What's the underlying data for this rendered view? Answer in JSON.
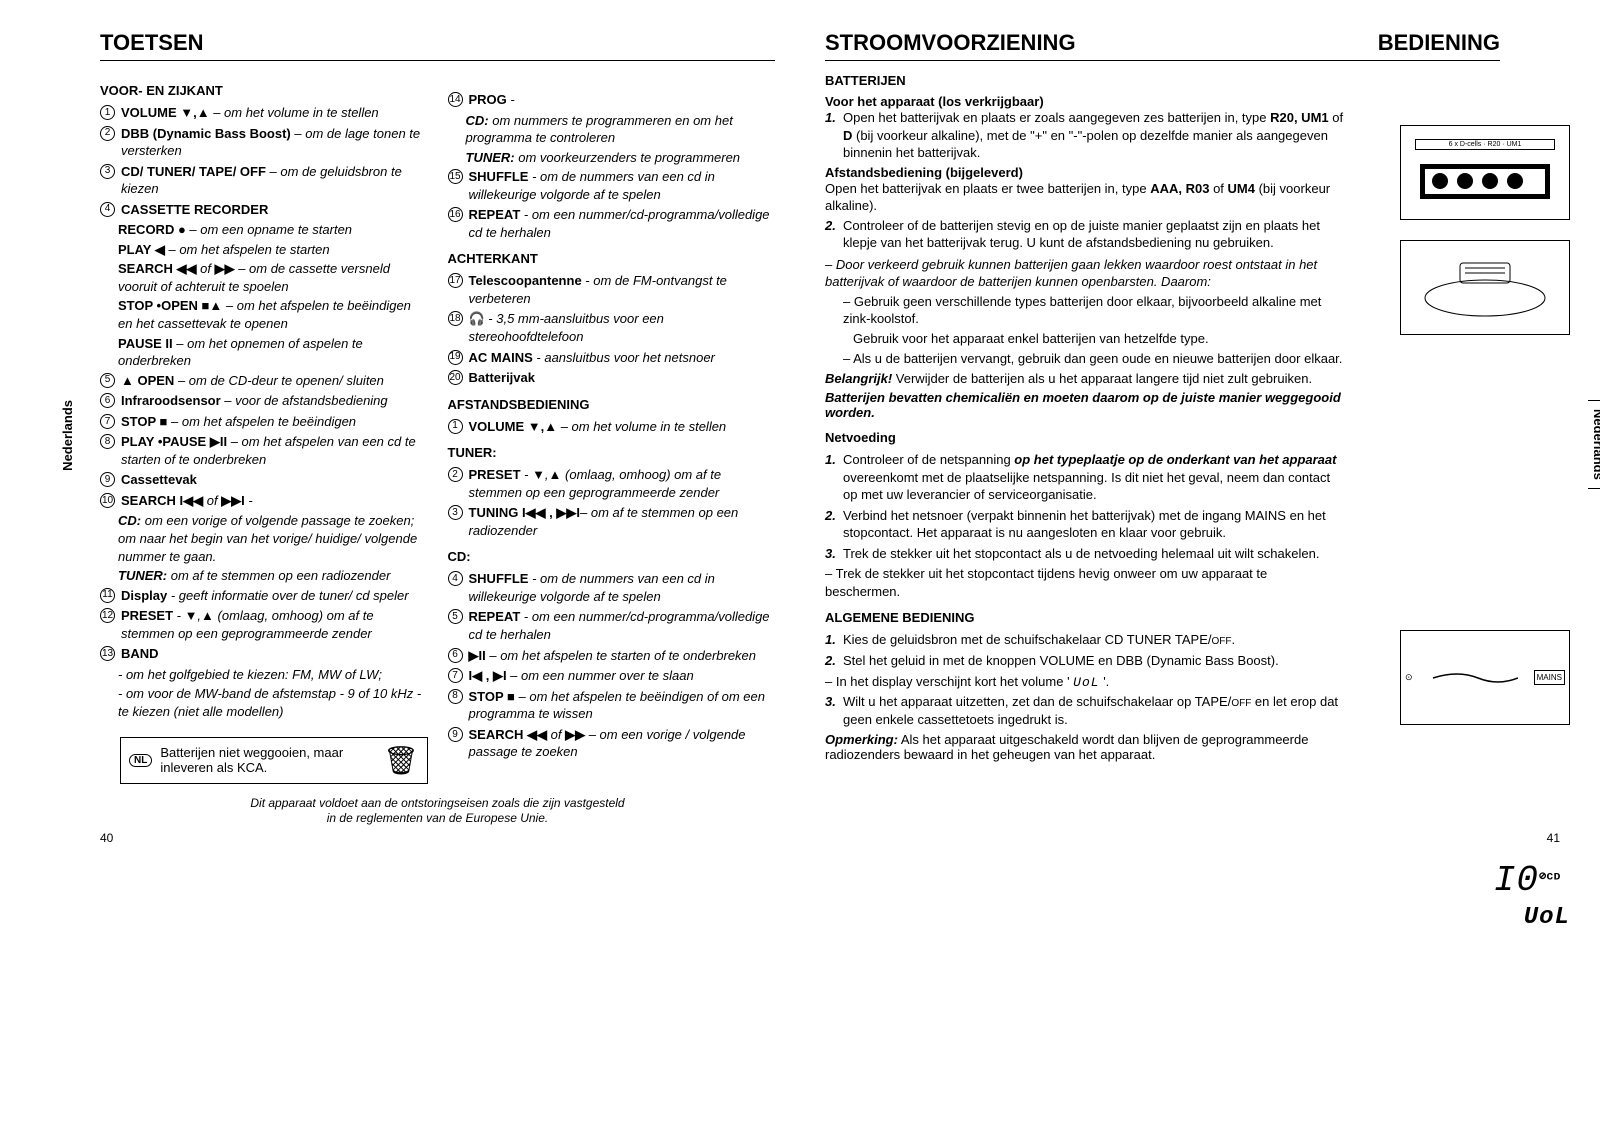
{
  "left": {
    "title": "TOETSEN",
    "sideTab": "Nederlands",
    "pageNum": "40",
    "col1": {
      "subhead": "VOOR- EN ZIJKANT",
      "items": [
        {
          "n": "1",
          "label": "VOLUME ▼,▲",
          "desc": " – om het volume in te stellen"
        },
        {
          "n": "2",
          "label": "DBB (Dynamic Bass Boost)",
          "desc": " – om de lage tonen te versterken"
        },
        {
          "n": "3",
          "label": "CD/ TUNER/ TAPE/ OFF",
          "desc": " – om de geluidsbron te kiezen"
        },
        {
          "n": "4",
          "label": "CASSETTE RECORDER",
          "desc": ""
        }
      ],
      "sub4": [
        {
          "label": "RECORD ●",
          "desc": " – om een opname te starten"
        },
        {
          "label": "PLAY ◀",
          "desc": " – om het afspelen te starten"
        },
        {
          "label": "SEARCH ◀◀ ",
          "mid": "of",
          "label2": " ▶▶",
          "desc": " – om de cassette versneld vooruit of achteruit te spoelen"
        },
        {
          "label": "STOP •OPEN ■▲",
          "desc": " – om het afspelen te beëindigen en het cassettevak te openen"
        },
        {
          "label": "PAUSE II",
          "desc": " – om het opnemen of aspelen te onderbreken"
        }
      ],
      "items2": [
        {
          "n": "5",
          "label": "▲ OPEN",
          "desc": " – om de CD-deur te openen/ sluiten"
        },
        {
          "n": "6",
          "label": "Infraroodsensor",
          "desc": " – voor de afstandsbediening"
        },
        {
          "n": "7",
          "label": "STOP ■",
          "desc": " – om het afspelen te beëindigen"
        },
        {
          "n": "8",
          "label": "PLAY •PAUSE ▶II",
          "desc": " – om het afspelen van een cd te starten of te onderbreken"
        },
        {
          "n": "9",
          "label": "Cassettevak",
          "desc": ""
        },
        {
          "n": "10",
          "label": "SEARCH I◀◀ ",
          "mid": "of",
          "label2": " ▶▶I",
          "desc": " -"
        }
      ],
      "cd_line": {
        "label": "CD:",
        "desc": " om een vorige of volgende passage te zoeken; om naar het begin van het vorige/ huidige/ volgende nummer te gaan."
      },
      "tuner_line": {
        "label": "TUNER:",
        "desc": " om af te stemmen op een radiozender"
      },
      "items3": [
        {
          "n": "11",
          "label": "Display",
          "desc": " - geeft informatie over de tuner/ cd speler"
        },
        {
          "n": "12",
          "label": "PRESET",
          "desc": " - ▼,▲ (omlaag, omhoog) om af te stemmen op een geprogrammeerde zender"
        },
        {
          "n": "13",
          "label": "BAND",
          "desc": ""
        }
      ],
      "band_lines": [
        "- om het golfgebied te kiezen: FM, MW of LW;",
        "- om voor de MW-band de afstemstap - 9 of 10 kHz - te kiezen (niet alle modellen)"
      ],
      "notebox": {
        "badge": "NL",
        "text": "Batterijen niet weggooien, maar inleveren als KCA."
      }
    },
    "col2": {
      "items1": [
        {
          "n": "14",
          "label": "PROG",
          "desc": " -"
        }
      ],
      "prog_cd": {
        "label": "CD:",
        "desc": " om nummers te programmeren en om het programma te controleren"
      },
      "prog_tuner": {
        "label": "TUNER:",
        "desc": " om voorkeurzenders te programmeren"
      },
      "items2": [
        {
          "n": "15",
          "label": "SHUFFLE",
          "desc": " - om de nummers van een cd in willekeurige volgorde af te spelen"
        },
        {
          "n": "16",
          "label": "REPEAT",
          "desc": " - om een nummer/cd-programma/volledige cd te herhalen"
        }
      ],
      "subhead2": "ACHTERKANT",
      "items3": [
        {
          "n": "17",
          "label": "Telescoopantenne",
          "desc": " - om de FM-ontvangst te verbeteren"
        },
        {
          "n": "18",
          "label": "🎧",
          "desc": " - 3,5 mm-aansluitbus voor een stereohoofdtelefoon"
        },
        {
          "n": "19",
          "label": "AC MAINS",
          "desc": " - aansluitbus voor het netsnoer"
        },
        {
          "n": "20",
          "label": "Batterijvak",
          "desc": ""
        }
      ],
      "subhead3": "AFSTANDSBEDIENING",
      "items4": [
        {
          "n": "1",
          "label": "VOLUME ▼,▲",
          "desc": " – om het volume in te stellen"
        }
      ],
      "subhead4": "TUNER:",
      "items5": [
        {
          "n": "2",
          "label": "PRESET",
          "desc": " - ▼,▲ (omlaag, omhoog) om af te stemmen op een geprogrammeerde zender"
        },
        {
          "n": "3",
          "label": "TUNING I◀◀ , ▶▶I",
          "desc": "– om af te stemmen op een radiozender"
        }
      ],
      "subhead5": "CD:",
      "items6": [
        {
          "n": "4",
          "label": "SHUFFLE",
          "desc": " - om de nummers van een cd in willekeurige volgorde af te spelen"
        },
        {
          "n": "5",
          "label": "REPEAT",
          "desc": " - om een nummer/cd-programma/volledige cd te herhalen"
        },
        {
          "n": "6",
          "label": "▶II",
          "desc": " – om het afspelen te starten of te onderbreken"
        },
        {
          "n": "7",
          "label": "I◀ , ▶I",
          "desc": " – om een nummer over te slaan"
        },
        {
          "n": "8",
          "label": "STOP ■",
          "desc": " – om het afspelen te beëindigen of om een programma te wissen"
        },
        {
          "n": "9",
          "label": "SEARCH ◀◀ ",
          "mid": "of",
          "label2": " ▶▶",
          "desc": " – om een vorige / volgende passage te zoeken"
        }
      ]
    },
    "footnote": "Dit apparaat voldoet aan de ontstoringseisen zoals die zijn vastgesteld\nin de reglementen van de Europese Unie."
  },
  "right": {
    "title1": "STROOMVOORZIENING",
    "title2": "BEDIENING",
    "sideTab": "Nederlands",
    "pageNum": "41",
    "sec1_head": "BATTERIJEN",
    "sec1_sub1": "Voor het apparaat (los verkrijgbaar)",
    "sec1_p1a": "Open het batterijvak en plaats er zoals aangegeven zes batterijen in, type ",
    "sec1_p1b": "R20, UM1",
    "sec1_p1c": " of ",
    "sec1_p1d": "D",
    "sec1_p1e": " (bij voorkeur alkaline), met de \"+\" en \"-\"-polen op dezelfde manier als aangegeven binnenin het batterijvak.",
    "sec1_sub2": "Afstandsbediening (bijgeleverd)",
    "sec1_p2a": "Open het batterijvak en plaats er twee batterijen in, type ",
    "sec1_p2b": "AAA, R03",
    "sec1_p2c": " of ",
    "sec1_p2d": "UM4",
    "sec1_p2e": " (bij voorkeur alkaline).",
    "sec1_p3": "Controleer of de batterijen stevig en op de juiste manier geplaatst zijn en plaats het klepje van het batterijvak terug. U kunt de afstandsbediening nu gebruiken.",
    "sec1_w1": "Door verkeerd gebruik kunnen batterijen gaan lekken waardoor roest ontstaat in het batterijvak of waardoor de batterijen kunnen openbarsten. Daarom:",
    "sec1_w2a": "Gebruik geen verschillende types batterijen door elkaar, bijvoorbeeld alkaline met zink-koolstof.",
    "sec1_w2b": "Gebruik voor het apparaat enkel batterijen van hetzelfde type.",
    "sec1_w3": "Als u de batterijen vervangt, gebruik dan geen oude en nieuwe batterijen door elkaar.",
    "sec1_imp_label": "Belangrijk!",
    "sec1_imp_text": " Verwijder de batterijen als u het apparaat langere tijd niet zult gebruiken.",
    "sec1_chem": "Batterijen bevatten chemicaliën en moeten daarom op de juiste manier weggegooid worden.",
    "sec2_head": "Netvoeding",
    "sec2_p1a": "Controleer of de netspanning ",
    "sec2_p1b": "op het typeplaatje op de onderkant van het apparaat",
    "sec2_p1c": " overeenkomt met de plaatselijke netspanning. Is dit niet het geval, neem dan contact op met uw leverancier of serviceorganisatie.",
    "sec2_p2": "Verbind het netsnoer (verpakt binnenin het batterijvak) met de ingang MAINS en het stopcontact. Het apparaat is nu aangesloten en klaar voor gebruik.",
    "sec2_p3": "Trek de stekker uit het stopcontact als u de netvoeding helemaal uit wilt schakelen.",
    "sec2_p4": "Trek de stekker uit het stopcontact tijdens hevig onweer om uw apparaat te beschermen.",
    "sec3_head": "ALGEMENE BEDIENING",
    "sec3_p1a": "Kies de geluidsbron met de schuifschakelaar CD TUNER TAPE/",
    "sec3_p1b": "OFF",
    "sec3_p1c": ".",
    "sec3_p2": "Stel het geluid in met de knoppen VOLUME en DBB (Dynamic Bass Boost).",
    "sec3_p3a": "In het display verschijnt kort het volume ' ",
    "sec3_p3b": "UoL",
    "sec3_p3c": " '.",
    "sec3_p4a": "Wilt u het apparaat uitzetten, zet dan de schuifschakelaar op TAPE/",
    "sec3_p4b": "OFF",
    "sec3_p4c": " en let erop dat geen enkele cassettetoets ingedrukt is.",
    "sec3_opm_label": "Opmerking:",
    "sec3_opm_text": " Als het apparaat uitgeschakeld wordt dan blijven de geprogrammeerde radiozenders bewaard in het geheugen van het apparaat.",
    "diag1": "6 x D-cells · R20 · UM1",
    "diag3_left": "⊙",
    "diag3_right": "MAINS",
    "diag4": "10 UoL"
  }
}
